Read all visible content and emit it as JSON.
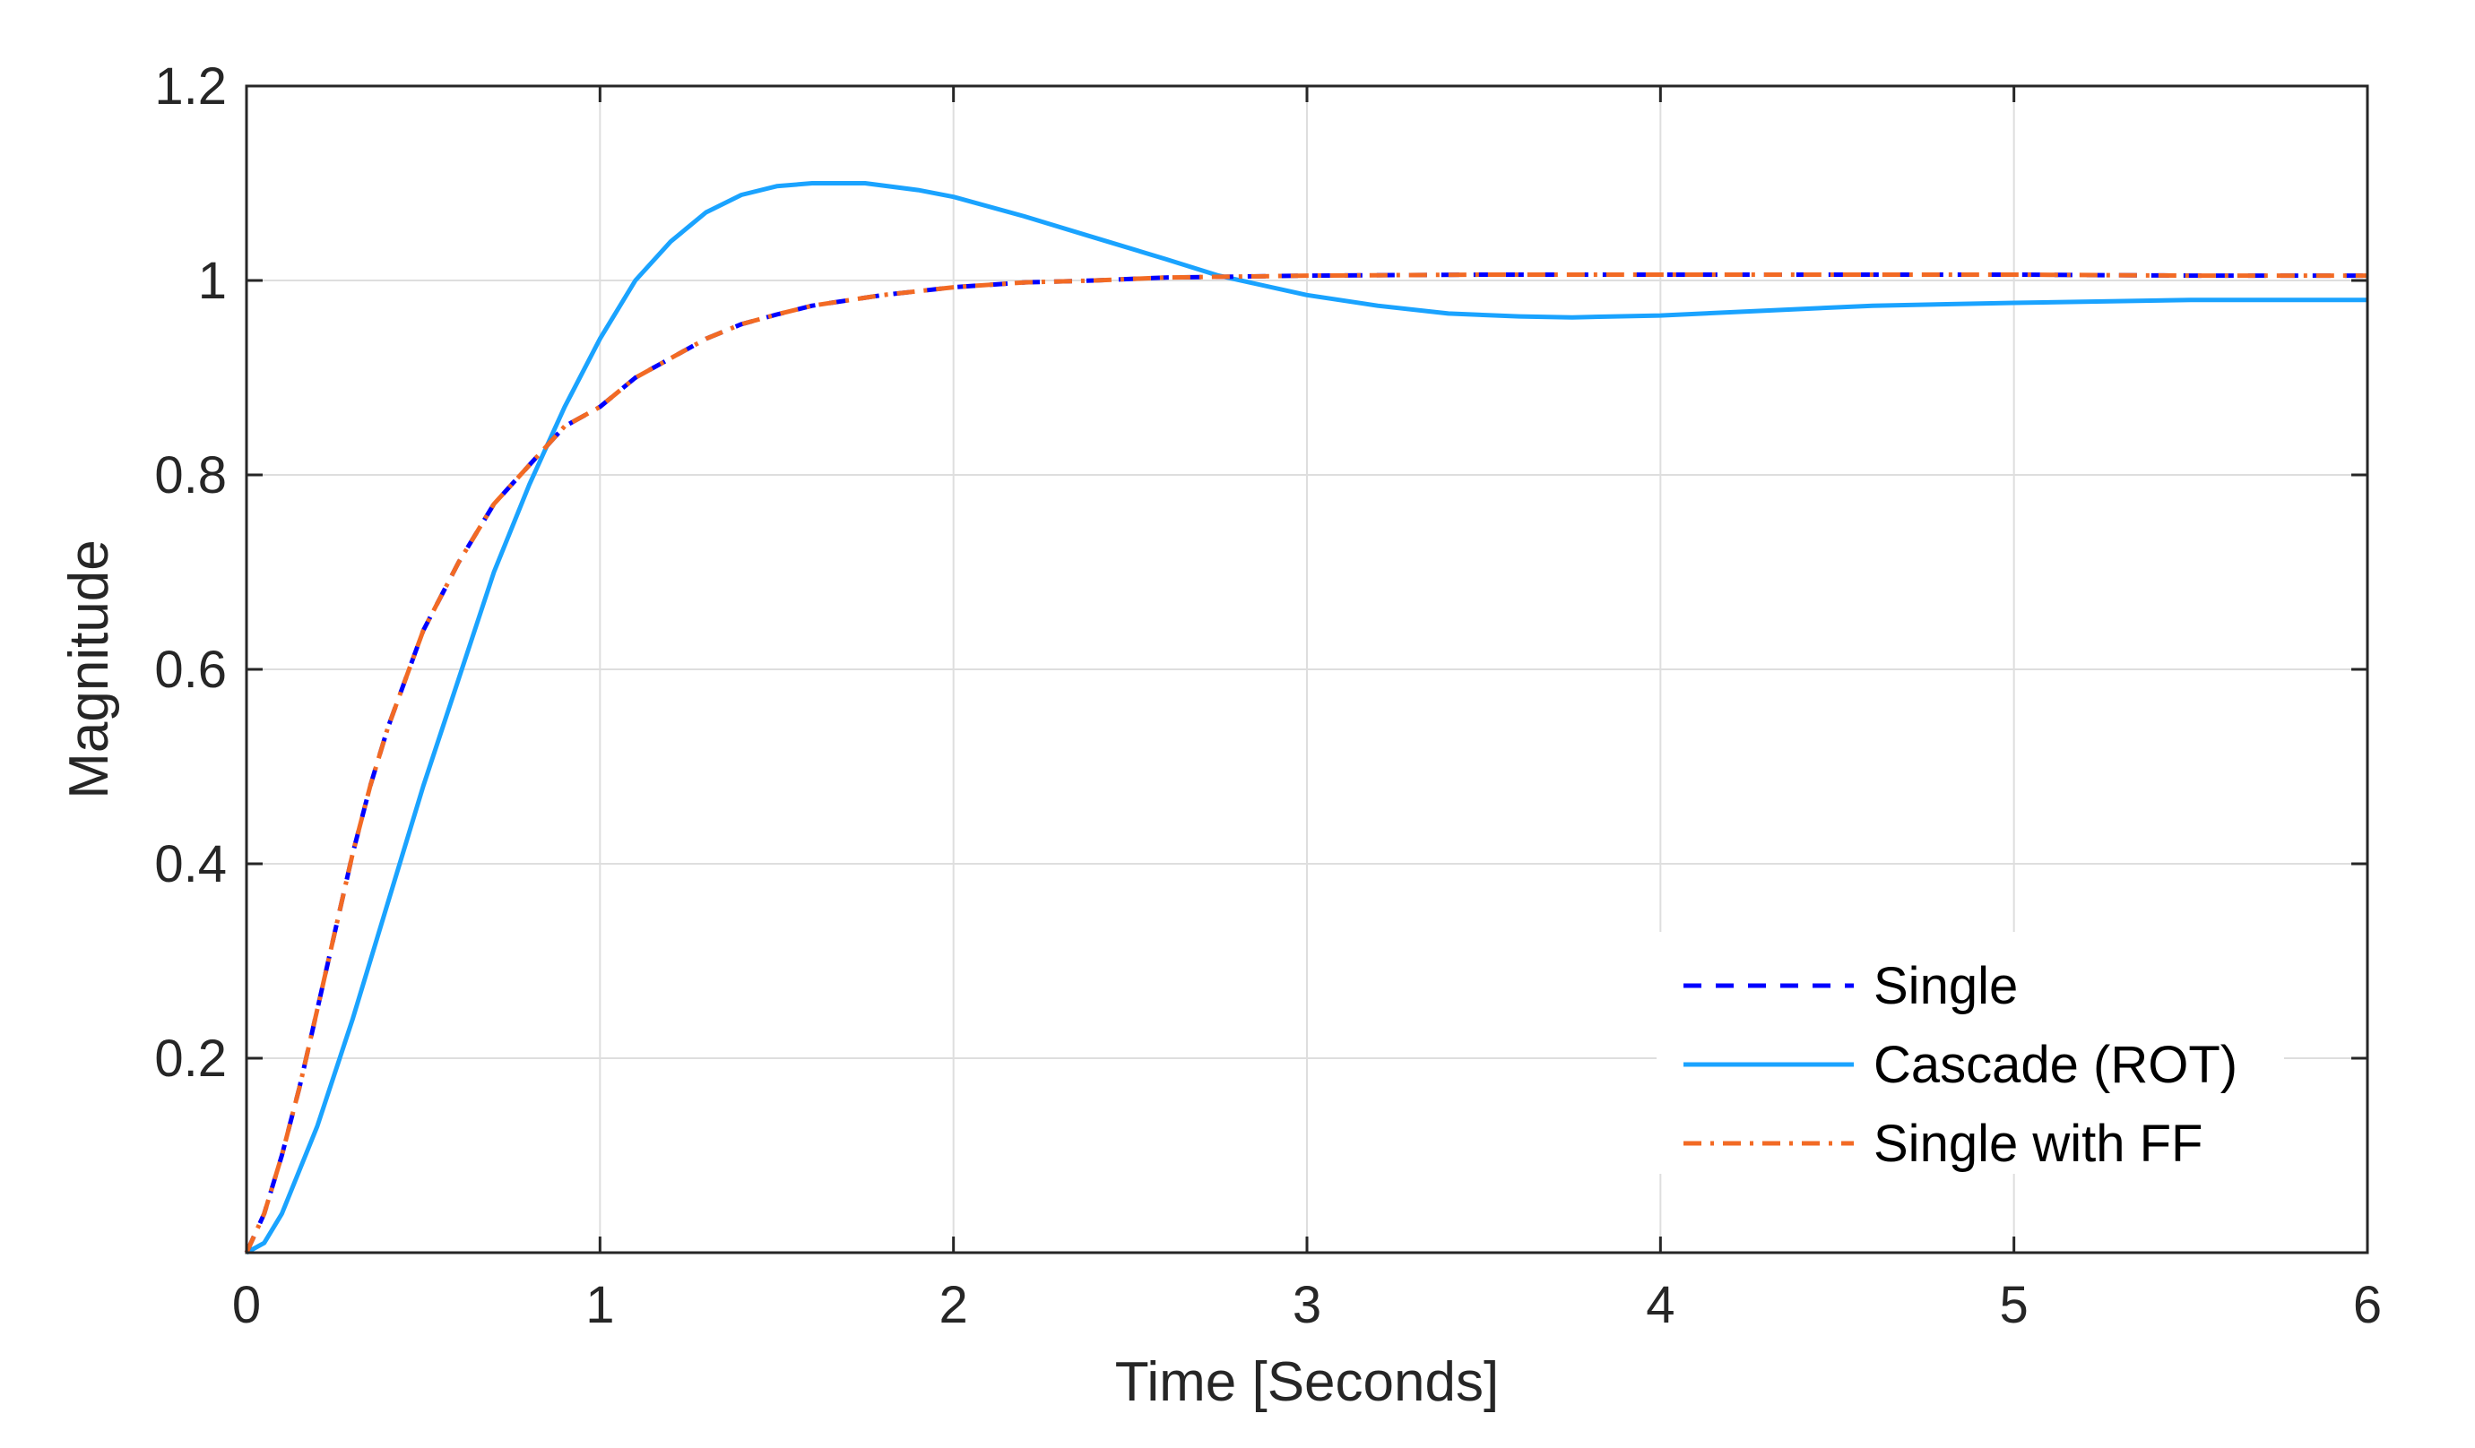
{
  "chart_data": {
    "type": "line",
    "xlabel": "Time [Seconds]",
    "ylabel": "Magnitude",
    "xlim": [
      0,
      6
    ],
    "ylim": [
      0,
      1.2
    ],
    "xticks": [
      0,
      1,
      2,
      3,
      4,
      5,
      6
    ],
    "xtick_labels": [
      "0",
      "1",
      "2",
      "3",
      "4",
      "5",
      "6"
    ],
    "yticks": [
      0.2,
      0.4,
      0.6,
      0.8,
      1.0,
      1.2
    ],
    "ytick_labels": [
      "0.2",
      "0.4",
      "0.6",
      "0.8",
      "1",
      "1.2"
    ],
    "grid": true,
    "legend_position": "bottom-right",
    "series": [
      {
        "name": "Single",
        "color": "#0000ff",
        "style": "dashed",
        "x": [
          0,
          0.05,
          0.1,
          0.15,
          0.2,
          0.25,
          0.3,
          0.35,
          0.4,
          0.45,
          0.5,
          0.6,
          0.7,
          0.8,
          0.9,
          1.0,
          1.1,
          1.2,
          1.3,
          1.4,
          1.5,
          1.6,
          1.8,
          2.0,
          2.2,
          2.4,
          2.6,
          2.8,
          3.0,
          3.5,
          4.0,
          4.5,
          5.0,
          5.5,
          6.0
        ],
        "y": [
          0.0,
          0.04,
          0.1,
          0.17,
          0.25,
          0.33,
          0.41,
          0.48,
          0.54,
          0.59,
          0.64,
          0.71,
          0.77,
          0.81,
          0.85,
          0.87,
          0.9,
          0.92,
          0.94,
          0.955,
          0.965,
          0.974,
          0.985,
          0.993,
          0.998,
          1.0,
          1.003,
          1.004,
          1.005,
          1.006,
          1.006,
          1.006,
          1.006,
          1.005,
          1.005
        ]
      },
      {
        "name": "Cascade (ROT)",
        "color": "#1aa3ff",
        "style": "solid",
        "x": [
          0,
          0.05,
          0.1,
          0.2,
          0.3,
          0.4,
          0.5,
          0.6,
          0.7,
          0.8,
          0.9,
          1.0,
          1.1,
          1.2,
          1.3,
          1.4,
          1.5,
          1.6,
          1.75,
          1.9,
          2.0,
          2.2,
          2.4,
          2.6,
          2.75,
          3.0,
          3.2,
          3.4,
          3.6,
          3.75,
          4.0,
          4.3,
          4.6,
          5.0,
          5.5,
          6.0
        ],
        "y": [
          0.0,
          0.01,
          0.04,
          0.13,
          0.24,
          0.36,
          0.48,
          0.59,
          0.7,
          0.79,
          0.87,
          0.94,
          1.0,
          1.04,
          1.07,
          1.088,
          1.097,
          1.1,
          1.1,
          1.093,
          1.086,
          1.066,
          1.044,
          1.022,
          1.005,
          0.985,
          0.974,
          0.966,
          0.963,
          0.962,
          0.964,
          0.969,
          0.974,
          0.977,
          0.98,
          0.98
        ]
      },
      {
        "name": "Single with FF",
        "color": "#f26a24",
        "style": "dashdot",
        "x": [
          0,
          0.05,
          0.1,
          0.15,
          0.2,
          0.25,
          0.3,
          0.35,
          0.4,
          0.45,
          0.5,
          0.6,
          0.7,
          0.8,
          0.9,
          1.0,
          1.1,
          1.2,
          1.3,
          1.4,
          1.5,
          1.6,
          1.8,
          2.0,
          2.2,
          2.4,
          2.6,
          2.8,
          3.0,
          3.5,
          4.0,
          4.5,
          5.0,
          5.5,
          6.0
        ],
        "y": [
          0.0,
          0.04,
          0.1,
          0.17,
          0.25,
          0.33,
          0.41,
          0.48,
          0.54,
          0.59,
          0.64,
          0.71,
          0.77,
          0.81,
          0.85,
          0.87,
          0.9,
          0.92,
          0.94,
          0.955,
          0.965,
          0.974,
          0.985,
          0.993,
          0.998,
          1.0,
          1.003,
          1.004,
          1.005,
          1.006,
          1.006,
          1.006,
          1.006,
          1.005,
          1.005
        ]
      }
    ]
  }
}
